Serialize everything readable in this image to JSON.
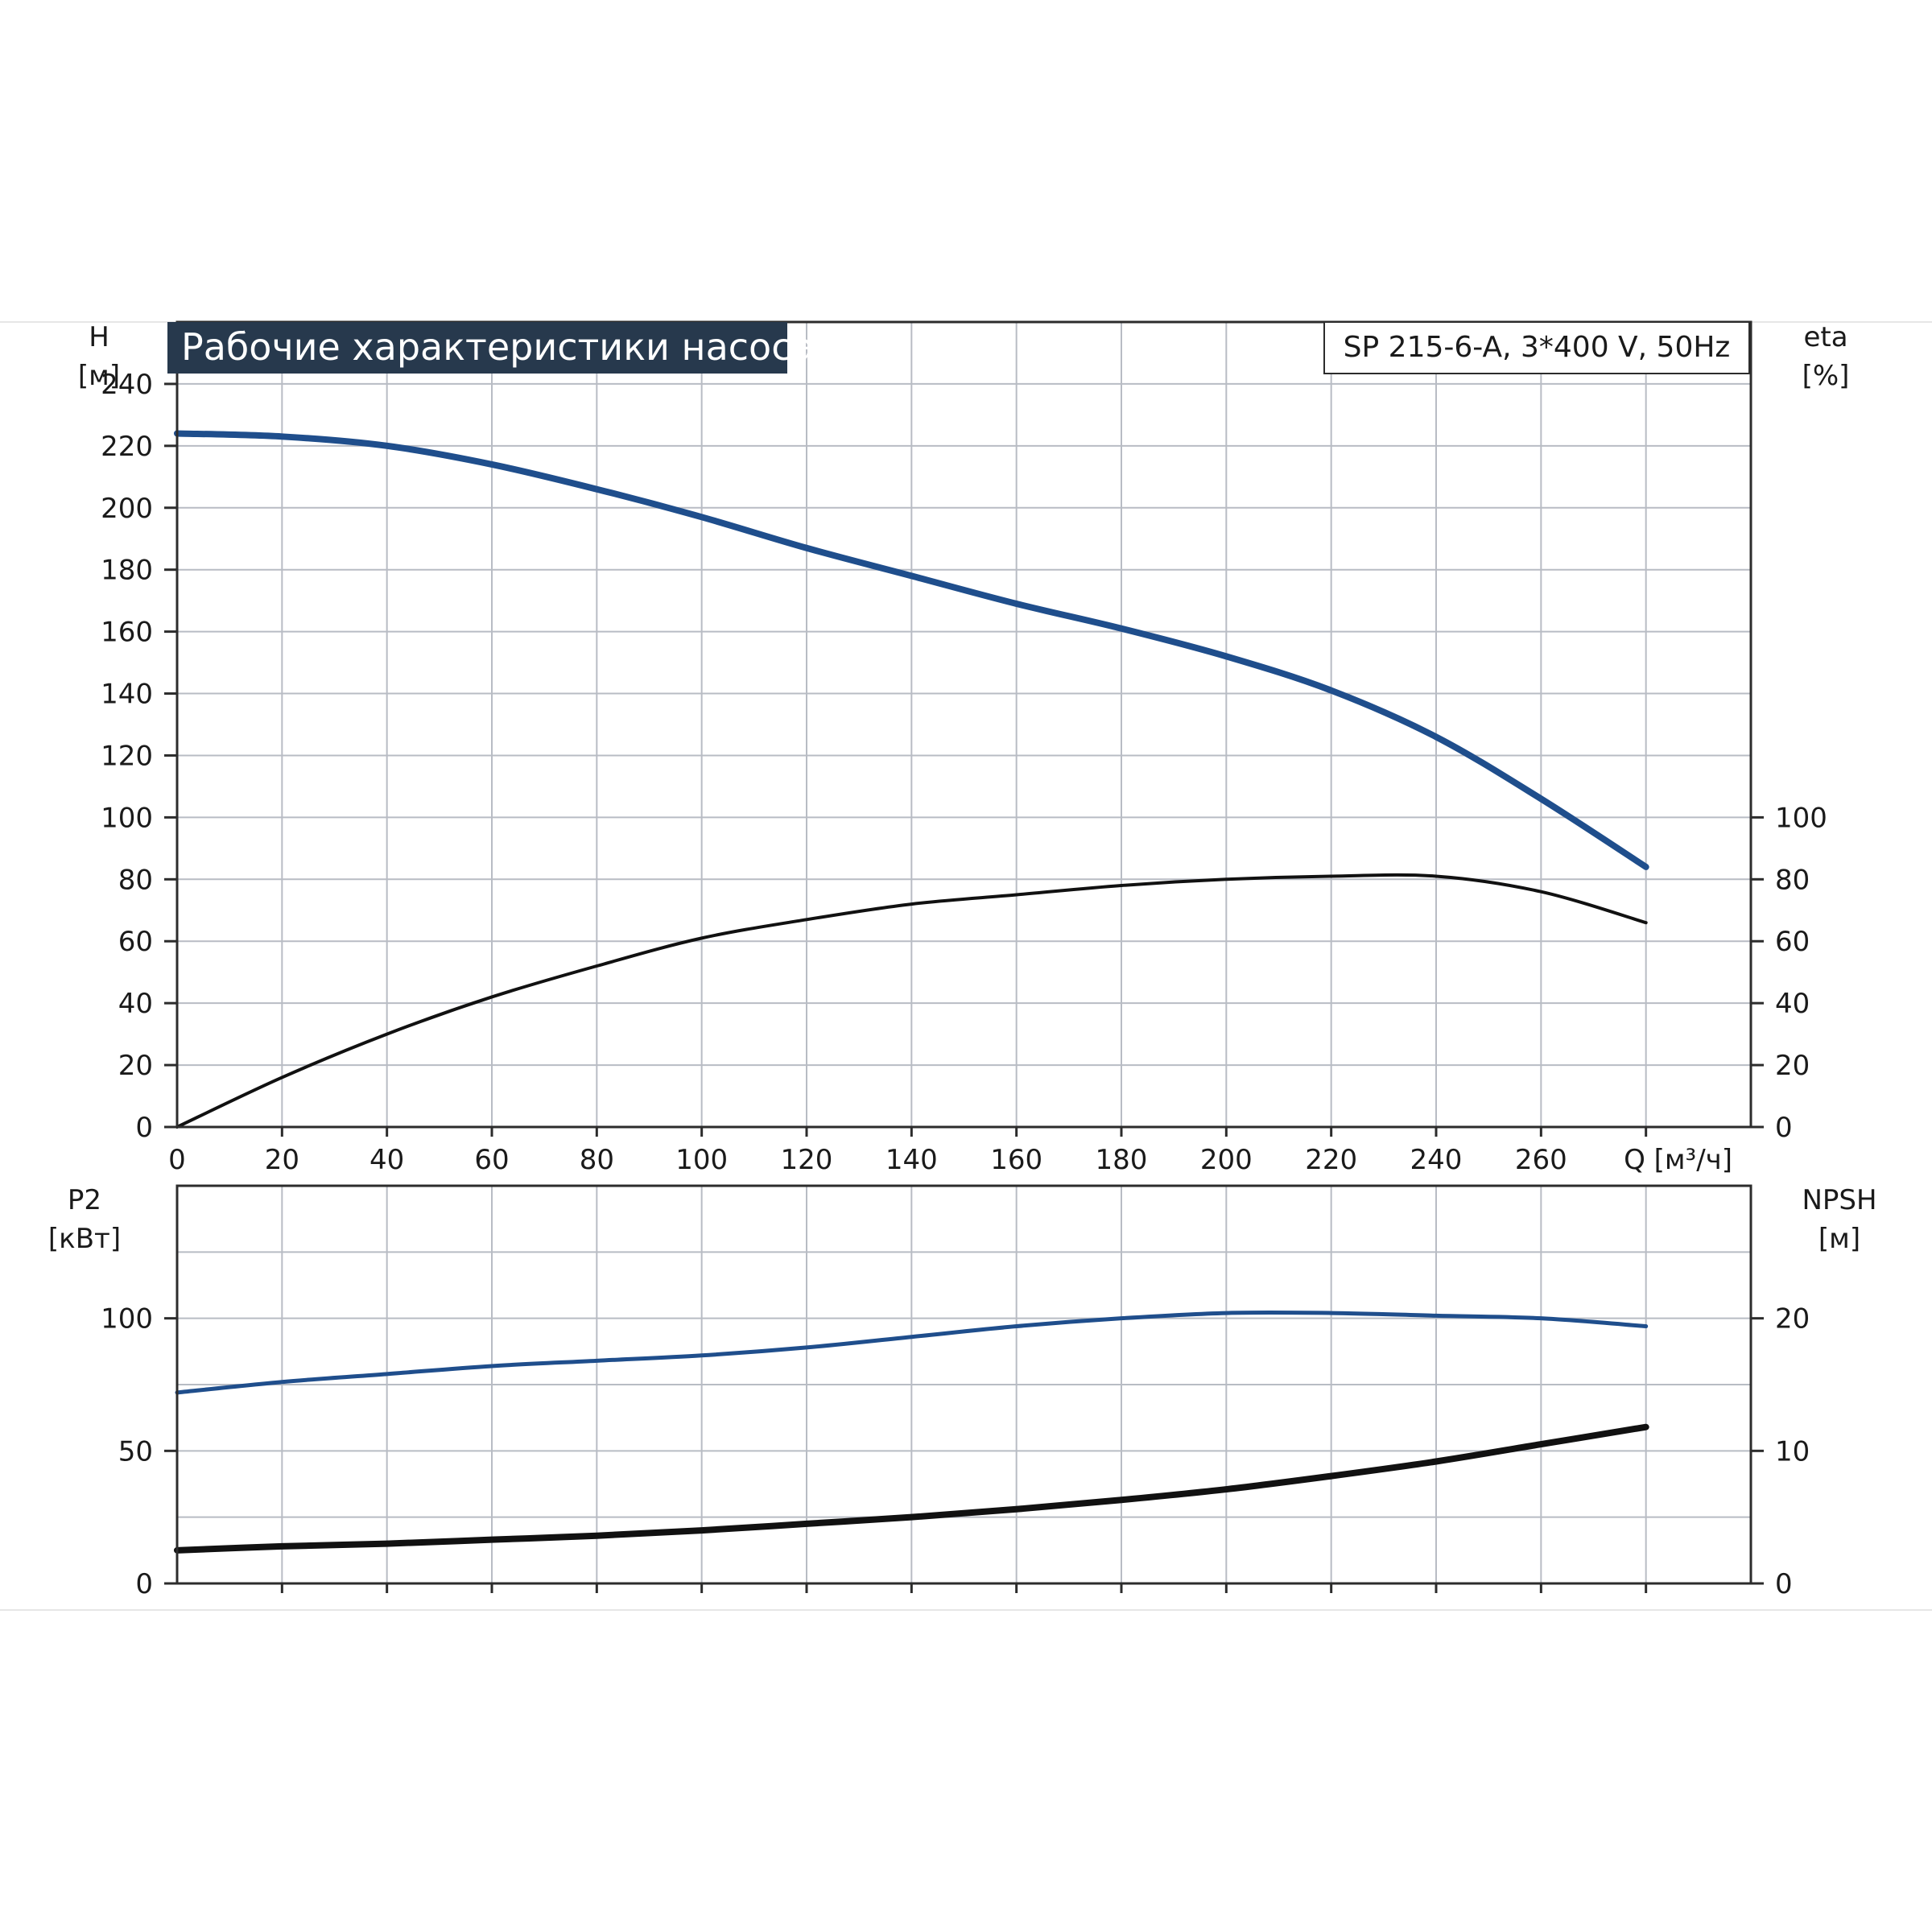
{
  "title": "Рабочие характеристики насоса",
  "model": "SP 215-6-A, 3*400 V, 50Hz",
  "colors": {
    "blue": "#1f4e8c",
    "black": "#111111",
    "grid": "#b8bcc4",
    "title_bg": "#27394d"
  },
  "chart_data": [
    {
      "type": "line",
      "name": "upper-panel",
      "xlabel": "Q [м³/ч]",
      "ylabel_left": "H\n[м]",
      "ylabel_right": "eta\n[%]",
      "xlim": [
        0,
        300
      ],
      "xticks": [
        0,
        20,
        40,
        60,
        80,
        100,
        120,
        140,
        160,
        180,
        200,
        220,
        240,
        260
      ],
      "ylim_left": [
        0,
        260
      ],
      "yticks_left": [
        0,
        20,
        40,
        60,
        80,
        100,
        120,
        140,
        160,
        180,
        200,
        220,
        240
      ],
      "ylim_right": [
        0,
        260
      ],
      "yticks_right": [
        0,
        20,
        40,
        60,
        80,
        100
      ],
      "grid": true,
      "series": [
        {
          "axis": "left",
          "color": "#1f4e8c",
          "x": [
            0,
            20,
            40,
            60,
            80,
            100,
            120,
            140,
            160,
            180,
            200,
            220,
            240,
            260,
            280
          ],
          "values": [
            224,
            223,
            220,
            214,
            206,
            197,
            187,
            178,
            169,
            161,
            152,
            141,
            126,
            106,
            84
          ]
        },
        {
          "axis": "right",
          "color": "#111111",
          "x": [
            0,
            20,
            40,
            60,
            80,
            100,
            120,
            140,
            160,
            180,
            200,
            220,
            240,
            260,
            280
          ],
          "values": [
            0,
            16,
            30,
            42,
            52,
            61,
            67,
            72,
            75,
            78,
            80,
            81,
            81,
            76,
            66
          ]
        }
      ]
    },
    {
      "type": "line",
      "name": "lower-panel",
      "ylabel_left": "P2\n[кВт]",
      "ylabel_right": "NPSH\n[м]",
      "xlim": [
        0,
        300
      ],
      "ylim_left": [
        0,
        150
      ],
      "yticks_left": [
        0,
        50,
        100
      ],
      "ylim_right": [
        0,
        30
      ],
      "yticks_right": [
        0,
        10,
        20
      ],
      "grid": true,
      "series": [
        {
          "axis": "left",
          "color": "#1f4e8c",
          "x": [
            0,
            20,
            40,
            60,
            80,
            100,
            120,
            140,
            160,
            180,
            200,
            220,
            240,
            260,
            280
          ],
          "values": [
            72,
            76,
            79,
            82,
            84,
            86,
            89,
            93,
            97,
            100,
            102,
            102,
            101,
            100,
            97
          ]
        },
        {
          "axis": "right",
          "color": "#111111",
          "x": [
            0,
            20,
            40,
            60,
            80,
            100,
            120,
            140,
            160,
            180,
            200,
            220,
            240,
            260,
            280
          ],
          "values": [
            2.5,
            2.8,
            3.0,
            3.3,
            3.6,
            4.0,
            4.5,
            5.0,
            5.6,
            6.3,
            7.1,
            8.1,
            9.2,
            10.5,
            11.8
          ]
        }
      ]
    }
  ]
}
